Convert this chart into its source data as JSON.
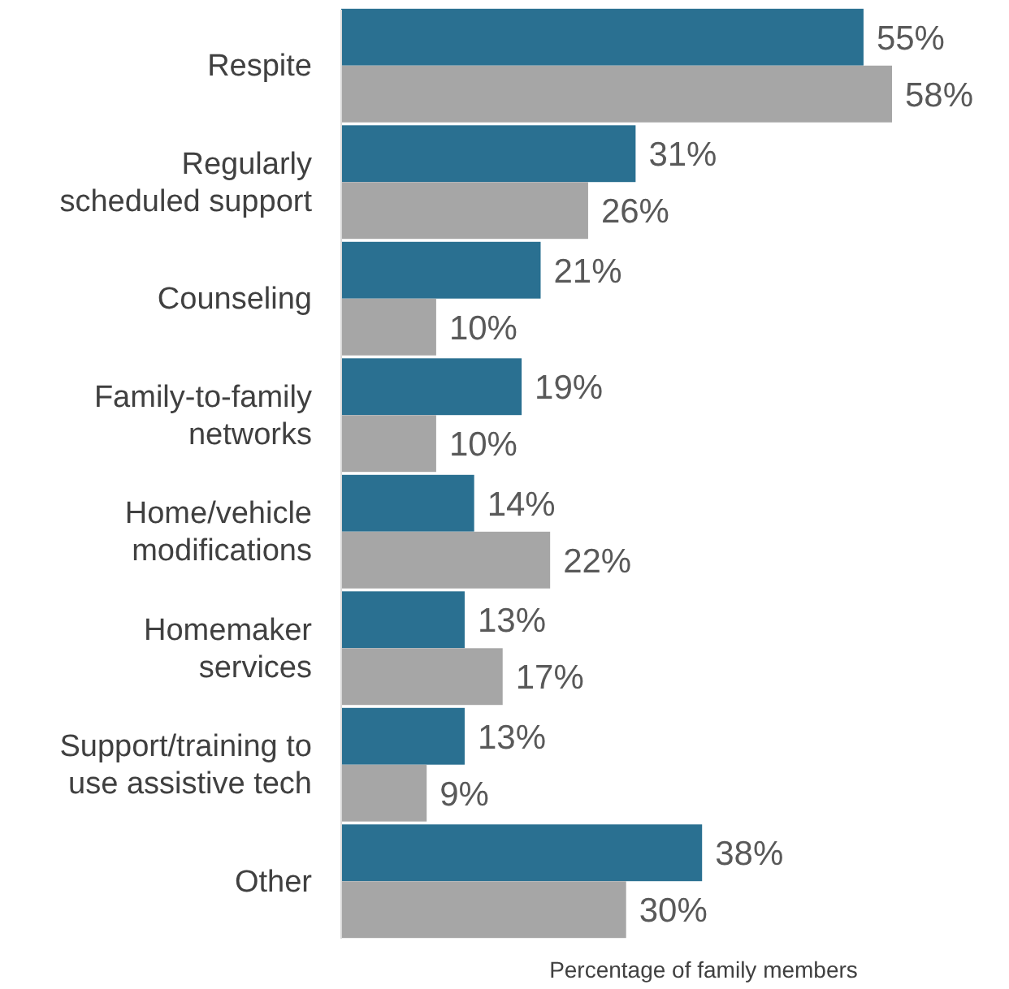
{
  "chart_data": {
    "type": "bar",
    "orientation": "horizontal",
    "xlabel": "Percentage of family members",
    "categories": [
      "Respite",
      "Regularly\nscheduled support",
      "Counseling",
      "Family-to-family\nnetworks",
      "Home/vehicle\nmodifications",
      "Homemaker\nservices",
      "Support/training to\nuse assistive tech",
      "Other"
    ],
    "series": [
      {
        "color": "#2a7091",
        "values": [
          55,
          31,
          21,
          19,
          14,
          13,
          13,
          38
        ],
        "value_labels": [
          "55%",
          "31%",
          "21%",
          "19%",
          "14%",
          "13%",
          "13%",
          "38%"
        ]
      },
      {
        "color": "#a6a6a6",
        "values": [
          58,
          26,
          10,
          10,
          22,
          17,
          9,
          30
        ],
        "value_labels": [
          "58%",
          "26%",
          "10%",
          "10%",
          "22%",
          "17%",
          "9%",
          "30%"
        ]
      }
    ]
  }
}
